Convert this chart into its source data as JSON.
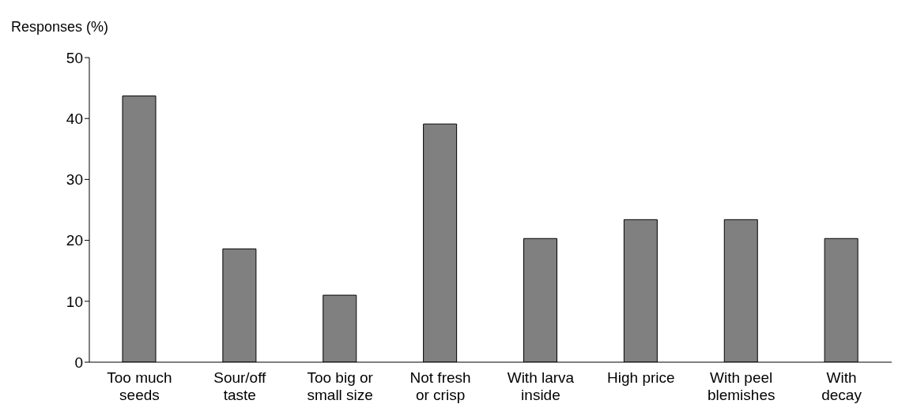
{
  "chart_data": {
    "type": "bar",
    "ylabel": "Responses (%)",
    "categories": [
      "Too much\nseeds",
      "Sour/off\ntaste",
      "Too big or\nsmall size",
      "Not fresh\nor crisp",
      "With larva\ninside",
      "High price",
      "With peel\nblemishes",
      "With\ndecay"
    ],
    "values": [
      43.7,
      18.6,
      11.0,
      39.1,
      20.3,
      23.4,
      23.4,
      20.3
    ],
    "color": "#808080",
    "ylim": [
      0,
      50
    ],
    "yticks": [
      0,
      10,
      20,
      30,
      40,
      50
    ],
    "grid": false,
    "legend": false
  }
}
